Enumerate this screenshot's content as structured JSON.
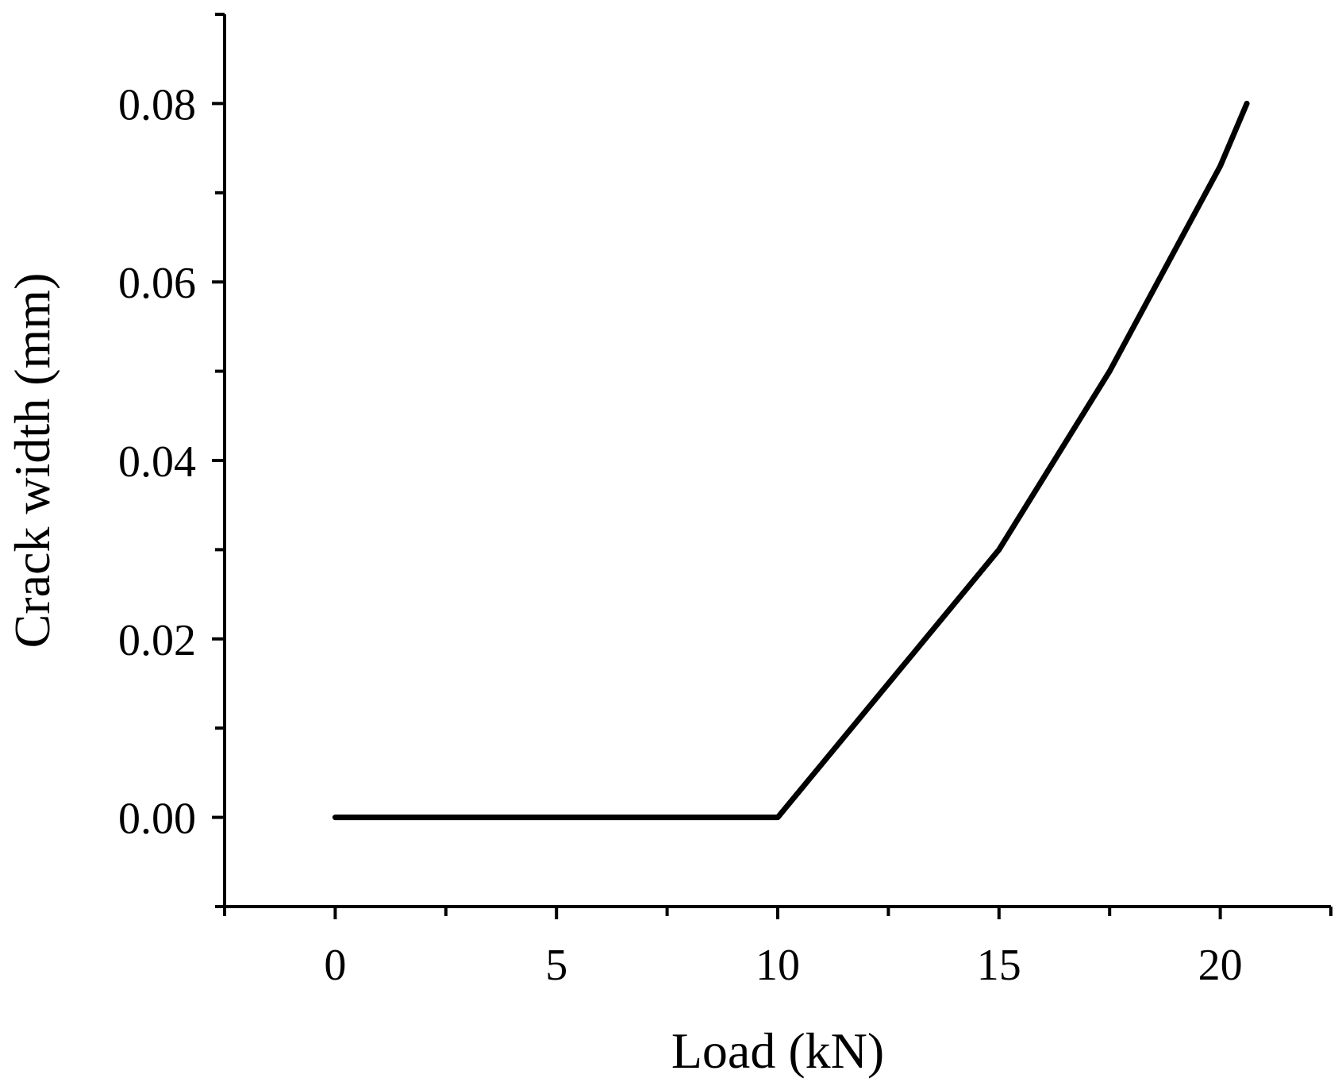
{
  "chart_data": {
    "type": "line",
    "title": "",
    "xlabel": "Load (kN)",
    "ylabel": "Crack width (mm)",
    "xlim": [
      -2.5,
      22.5
    ],
    "ylim": [
      -0.01,
      0.09
    ],
    "x_ticks": [
      "0",
      "5",
      "10",
      "15",
      "20"
    ],
    "y_ticks": [
      "0.00",
      "0.02",
      "0.04",
      "0.06",
      "0.08"
    ],
    "grid": false,
    "legend": "none",
    "series": [
      {
        "color": "#000000",
        "x": [
          0,
          10,
          12.5,
          15,
          17.5,
          20,
          20.6
        ],
        "y": [
          0,
          0,
          0.015,
          0.03,
          0.05,
          0.073,
          0.08
        ]
      }
    ]
  }
}
